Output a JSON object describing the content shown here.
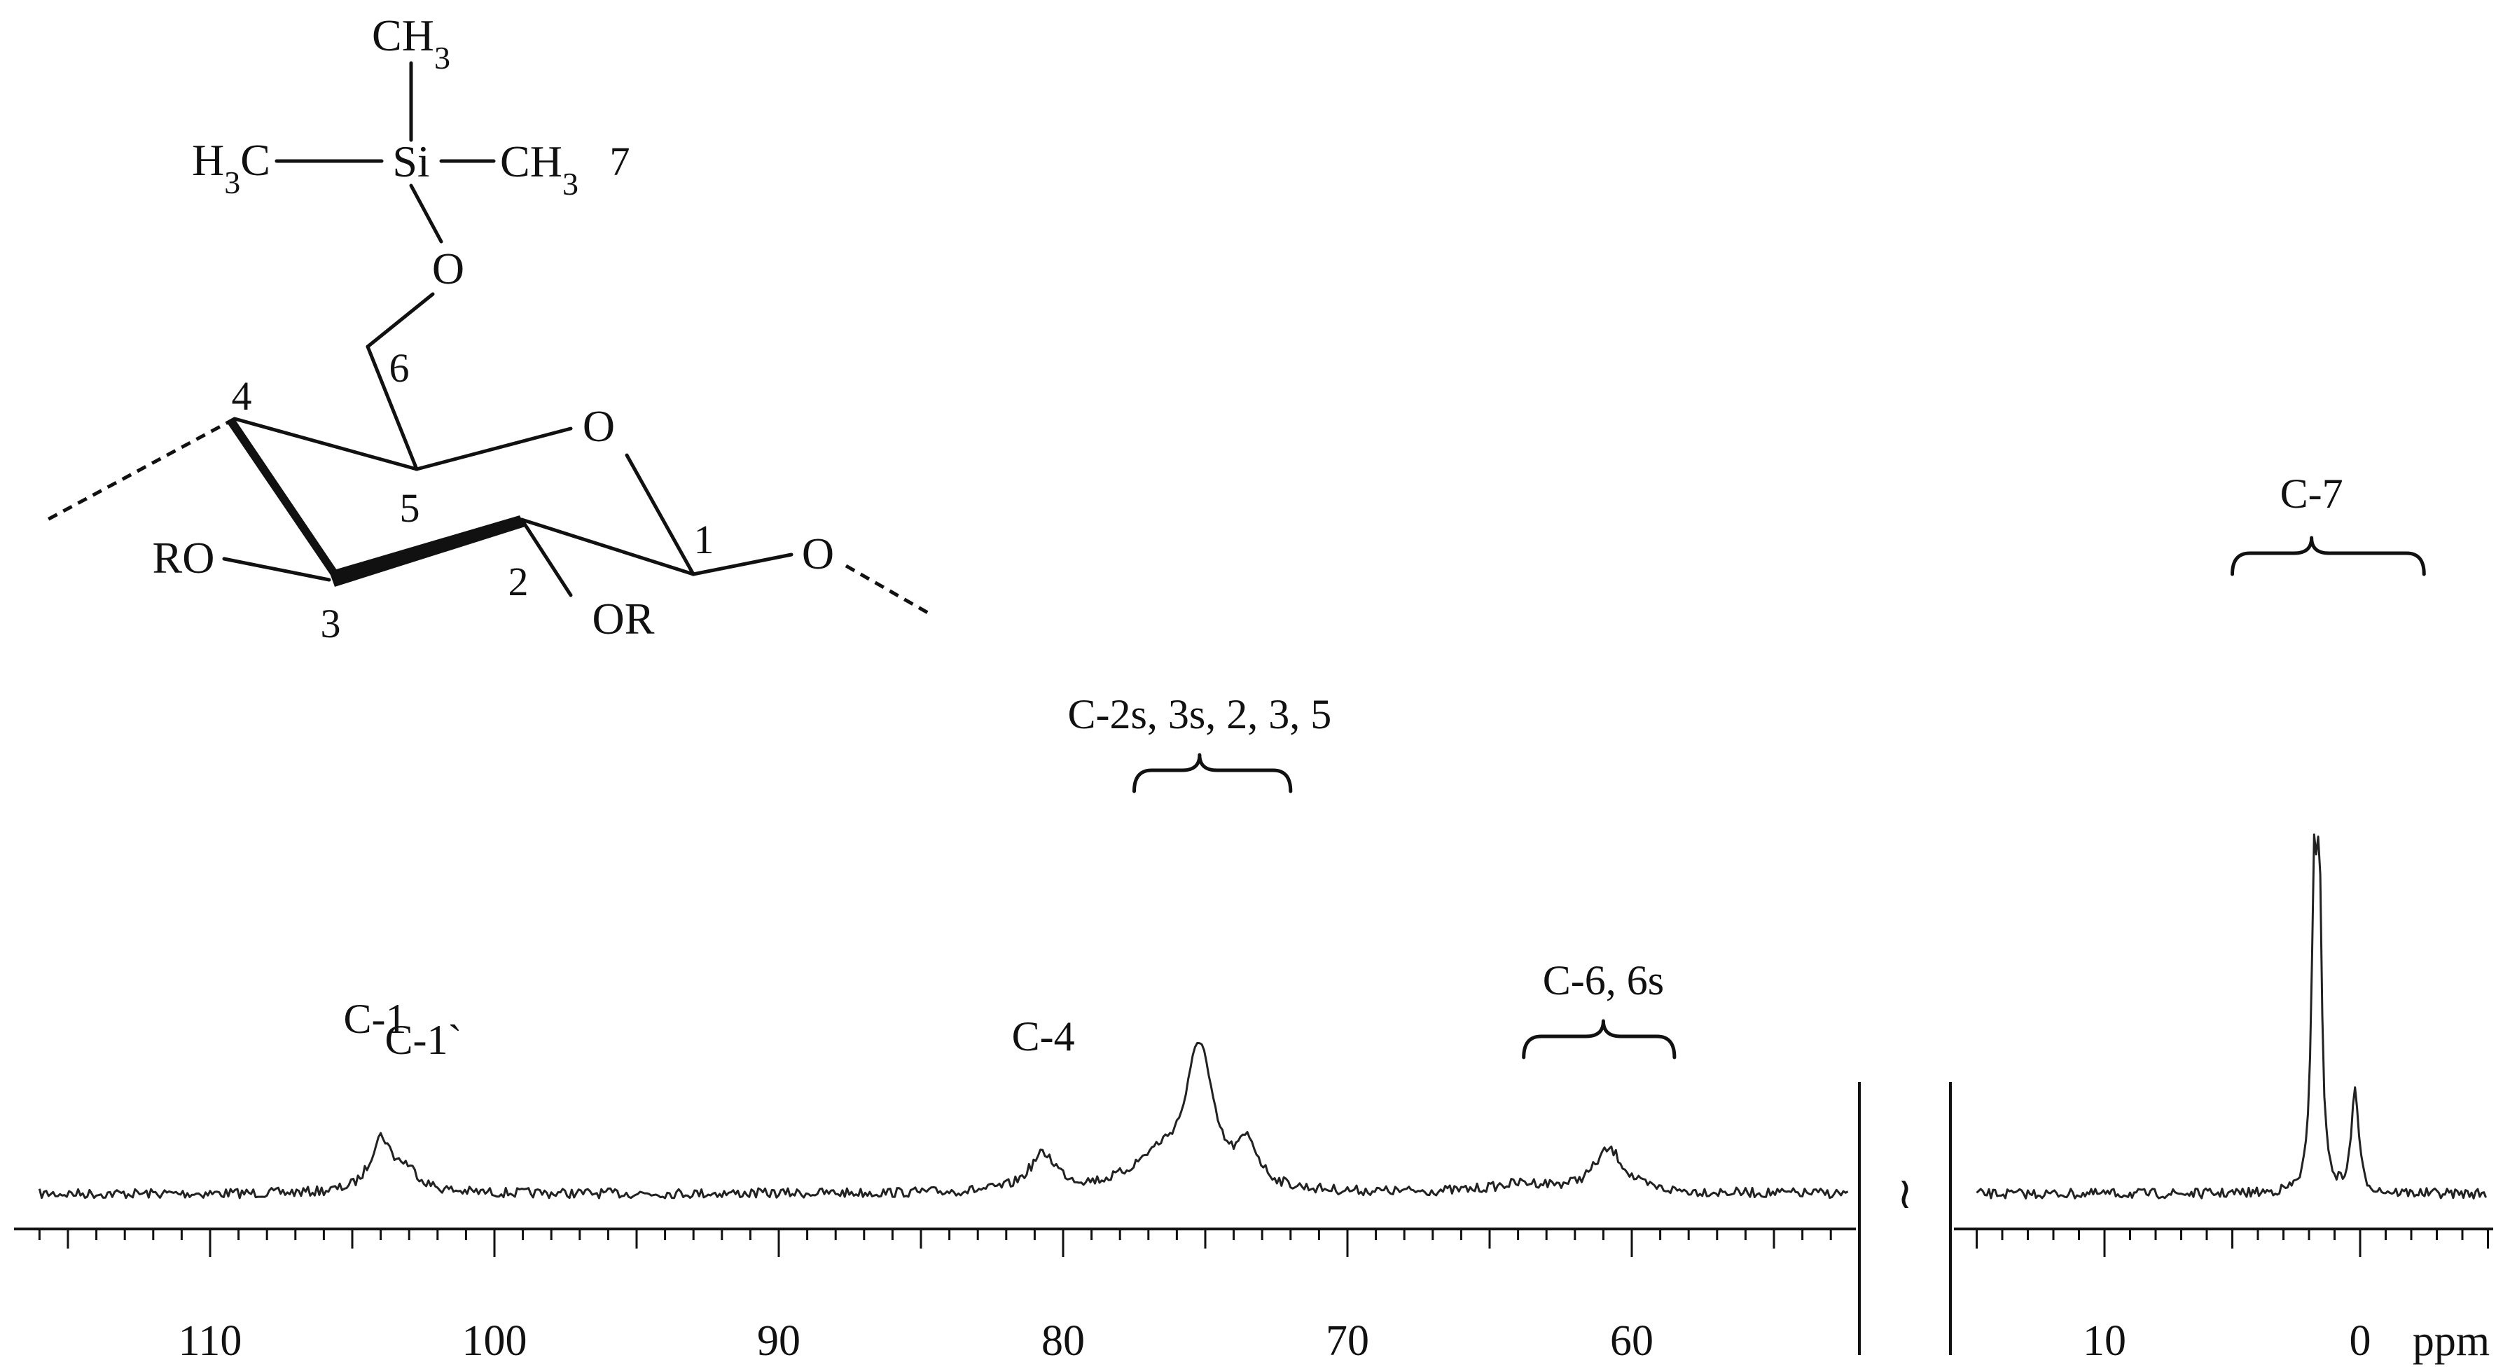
{
  "structure": {
    "atoms": {
      "ch3_top": "CH3",
      "h3c": "H3C",
      "si": "Si",
      "ch3_right": "CH3",
      "o6": "O",
      "ring_o": "O",
      "glyco_o": "O",
      "ro": "RO",
      "or": "OR"
    },
    "numbers": {
      "n7": "7",
      "n6": "6",
      "n4": "4",
      "n5": "5",
      "n1": "1",
      "n2": "2",
      "n3": "3"
    }
  },
  "chart_data": {
    "type": "line",
    "title": "",
    "xlabel": "ppm",
    "ylabel": "",
    "x_reversed": true,
    "axis_break": {
      "from": 15,
      "to": 50
    },
    "panels": [
      {
        "xlim": [
          116,
          50
        ],
        "ticks": [
          110,
          100,
          90,
          80,
          70,
          60
        ]
      },
      {
        "xlim": [
          15,
          -5
        ],
        "ticks": [
          10,
          0
        ]
      }
    ],
    "tick_labels": [
      "110",
      "100",
      "90",
      "80",
      "70",
      "60",
      "10",
      "0"
    ],
    "unit_label": "ppm",
    "break_symbol": "≀",
    "peaks": [
      {
        "label": "C-1",
        "ppm": 104.0,
        "height": 0.36
      },
      {
        "label": "C-1`",
        "ppm": 103.1,
        "height": 0.14
      },
      {
        "label": "C-4",
        "ppm": 80.7,
        "height": 0.25
      },
      {
        "label": "C-2s, 3s, 2, 3, 5",
        "ppm": 75.2,
        "height": 0.94
      },
      {
        "label": "",
        "ppm": 76.6,
        "height": 0.22
      },
      {
        "label": "",
        "ppm": 73.5,
        "height": 0.28
      },
      {
        "label": "C-6, 6s",
        "ppm": 60.8,
        "height": 0.29
      },
      {
        "label": "",
        "ppm": 63.8,
        "height": 0.06
      },
      {
        "label": "C-7",
        "ppm": 1.8,
        "height": 1.95
      },
      {
        "label": "",
        "ppm": 1.6,
        "height": 1.95
      },
      {
        "label": "",
        "ppm": 0.2,
        "height": 0.72
      }
    ],
    "annotations": [
      {
        "text": "C-1",
        "ppm": 104.2,
        "bracket": null
      },
      {
        "text": "C-1`",
        "ppm": 102.5,
        "bracket": null
      },
      {
        "text": "C-4",
        "ppm": 80.7,
        "bracket": null
      },
      {
        "text": "C-2s, 3s, 2, 3, 5",
        "ppm": 75.2,
        "bracket": [
          77.5,
          72.0
        ]
      },
      {
        "text": "C-6, 6s",
        "ppm": 61.0,
        "bracket": [
          63.8,
          58.5
        ]
      },
      {
        "text": "C-7",
        "ppm": 1.9,
        "bracket": [
          5.0,
          -2.5
        ]
      }
    ]
  }
}
